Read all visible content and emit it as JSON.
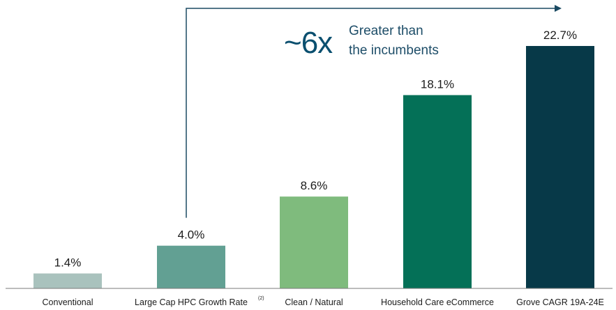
{
  "chart_data": {
    "type": "bar",
    "categories": [
      "Conventional",
      "Large Cap HPC Growth Rate",
      "Clean / Natural",
      "Household Care eCommerce",
      "Grove CAGR 19A-24E"
    ],
    "category_footnotes": [
      "",
      "(2)",
      "",
      "",
      ""
    ],
    "values": [
      1.4,
      4.0,
      8.6,
      18.1,
      22.7
    ],
    "value_labels": [
      "1.4%",
      "4.0%",
      "8.6%",
      "18.1%",
      "22.7%"
    ],
    "colors": [
      "#a9c2bd",
      "#62a093",
      "#7fbb7d",
      "#047057",
      "#073948"
    ],
    "ylim": [
      0,
      24
    ],
    "title": "",
    "xlabel": "",
    "ylabel": "",
    "annotation": {
      "multiplier": "~6x",
      "line1": "Greater than",
      "line2": "the incumbents",
      "arrow_from_category": 1,
      "arrow_to_category": 4
    }
  },
  "colors": {
    "label_text": "#1b1b1b",
    "annotation_big": "#0a4f6f",
    "annotation_small": "#1d4d68",
    "axis": "#7a7a7a",
    "arrow": "#1a4a62"
  }
}
